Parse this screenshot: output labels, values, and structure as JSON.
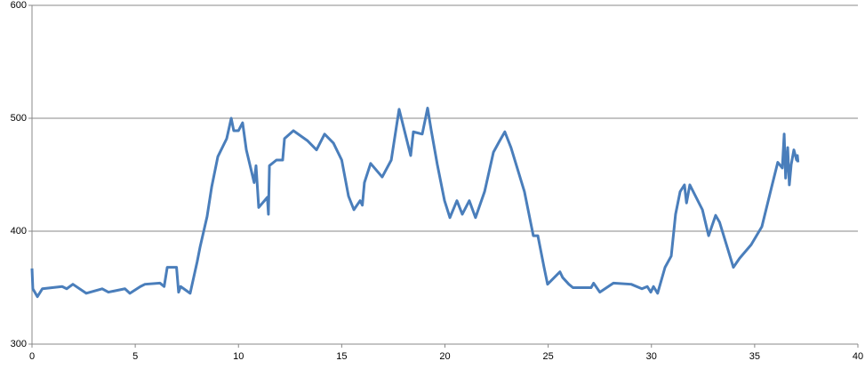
{
  "chart_data": {
    "type": "line",
    "color": "#4a7ebb",
    "grid": true,
    "xlim": [
      0,
      40
    ],
    "xticks": [
      0,
      5,
      10,
      15,
      20,
      25,
      30,
      35,
      40
    ],
    "ylim": [
      300,
      600
    ],
    "yticks": [
      300,
      400,
      500,
      600
    ],
    "x": [
      0,
      0.04,
      0.26,
      0.5,
      1.46,
      1.68,
      1.98,
      2.63,
      3.4,
      3.7,
      4.5,
      4.74,
      5.25,
      5.47,
      6.2,
      6.4,
      6.55,
      7.0,
      7.1,
      7.2,
      7.66,
      8.0,
      8.14,
      8.48,
      8.7,
      9.0,
      9.43,
      9.65,
      9.77,
      10.0,
      10.2,
      10.38,
      10.76,
      10.85,
      10.98,
      11.4,
      11.45,
      11.5,
      11.84,
      12.14,
      12.23,
      12.66,
      13.35,
      13.78,
      14.17,
      14.6,
      15.0,
      15.33,
      15.59,
      15.89,
      16.0,
      16.1,
      16.4,
      16.96,
      17.4,
      17.78,
      18.34,
      18.47,
      18.9,
      19.16,
      19.33,
      19.63,
      19.98,
      20.24,
      20.58,
      20.84,
      21.18,
      21.48,
      21.92,
      22.35,
      22.65,
      22.9,
      23.2,
      23.85,
      24.28,
      24.5,
      24.8,
      24.97,
      25.57,
      25.7,
      26.0,
      26.2,
      27.08,
      27.2,
      27.5,
      28.16,
      29.02,
      29.54,
      29.8,
      29.97,
      30.1,
      30.3,
      30.66,
      30.96,
      31.17,
      31.39,
      31.6,
      31.7,
      31.86,
      32.47,
      32.77,
      33.11,
      33.3,
      33.97,
      34.27,
      34.83,
      35.35,
      35.82,
      36.12,
      36.34,
      36.43,
      36.5,
      36.6,
      36.68,
      36.77,
      36.9,
      37.03,
      37.07,
      37.1
    ],
    "values": [
      367,
      349,
      342,
      349,
      351,
      349,
      353,
      345,
      349,
      346,
      349,
      345,
      351,
      353,
      354,
      351,
      368,
      368,
      346,
      351,
      345,
      373,
      386,
      413,
      439,
      466,
      482,
      500,
      489,
      489,
      496,
      472,
      443,
      458,
      421,
      430,
      415,
      458,
      463,
      463,
      482,
      489,
      480,
      472,
      486,
      478,
      463,
      431,
      419,
      427,
      423,
      443,
      460,
      448,
      463,
      508,
      467,
      488,
      486,
      509,
      490,
      459,
      427,
      412,
      427,
      415,
      427,
      412,
      435,
      470,
      480,
      488,
      474,
      435,
      396,
      396,
      368,
      353,
      364,
      359,
      353,
      350,
      350,
      354,
      346,
      354,
      353,
      349,
      351,
      346,
      351,
      345,
      368,
      378,
      415,
      435,
      441,
      425,
      441,
      419,
      396,
      414,
      408,
      368,
      376,
      388,
      404,
      439,
      461,
      456,
      486,
      447,
      474,
      441,
      459,
      472,
      463,
      467,
      461
    ]
  }
}
